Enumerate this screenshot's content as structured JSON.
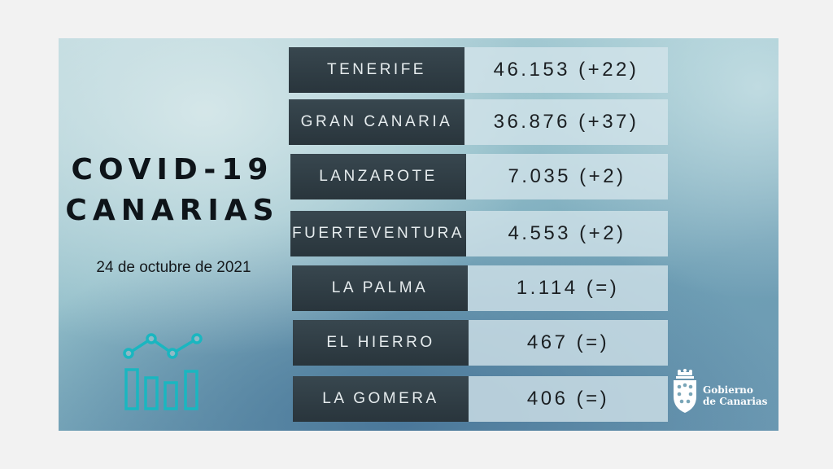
{
  "title": {
    "line1": "COVID-19",
    "line2": "CANARIAS"
  },
  "date": "24 de octubre de 2021",
  "islands": [
    {
      "name": "TENERIFE",
      "value": "46.153 (+22)"
    },
    {
      "name": "GRAN CANARIA",
      "value": "36.876 (+37)"
    },
    {
      "name": "LANZAROTE",
      "value": "7.035 (+2)"
    },
    {
      "name": "FUERTEVENTURA",
      "value": "4.553 (+2)"
    },
    {
      "name": "LA PALMA",
      "value": "1.114 (=)"
    },
    {
      "name": "EL HIERRO",
      "value": "467 (=)"
    },
    {
      "name": "LA GOMERA",
      "value": "406 (=)"
    }
  ],
  "logo": {
    "line1": "Gobierno",
    "line2": "de Canarias"
  },
  "colors": {
    "label_bg": "#2f3c43",
    "value_bg": "#d4e4ea",
    "icon": "#1ab6c0"
  },
  "icons": [
    "chart-icon",
    "coat-of-arms-icon"
  ]
}
